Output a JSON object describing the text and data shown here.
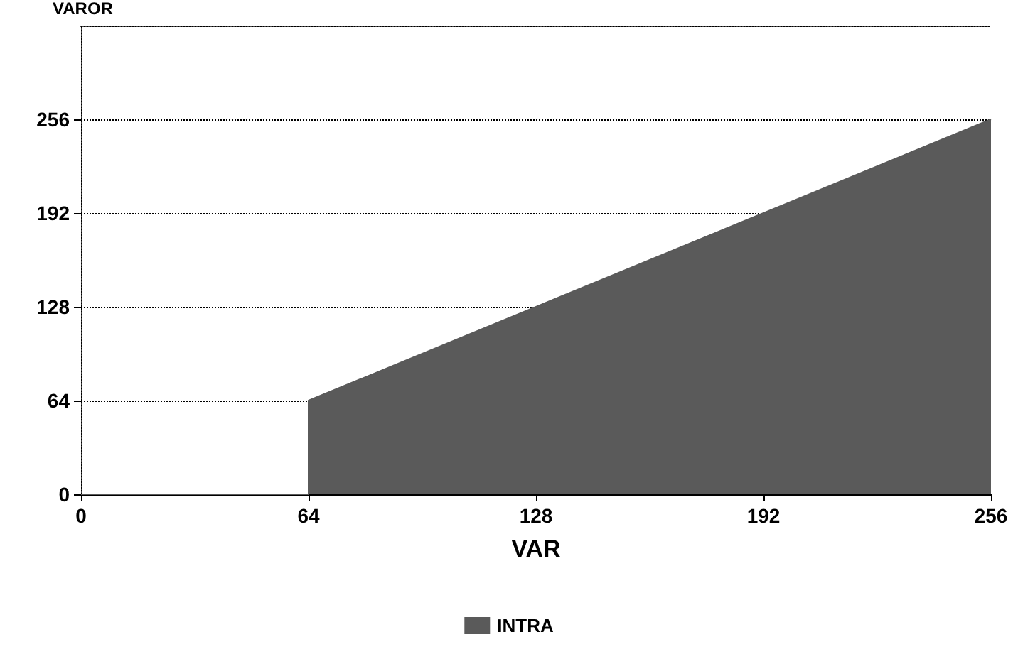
{
  "chart_data": {
    "type": "area",
    "xlabel": "VAR",
    "ylabel": "VAROR",
    "series": [
      {
        "name": "INTRA",
        "color": "#5a5a5a",
        "x": [
          0,
          64,
          64,
          256
        ],
        "values": [
          0,
          0,
          64,
          256
        ]
      }
    ],
    "xlim": [
      0,
      256
    ],
    "xticks": [
      0,
      64,
      128,
      192,
      256
    ],
    "ylim": [
      0,
      320
    ],
    "yticks": [
      0,
      64,
      128,
      192,
      256
    ],
    "grid": "y",
    "legend": "bottom",
    "line_style": "dotted"
  }
}
